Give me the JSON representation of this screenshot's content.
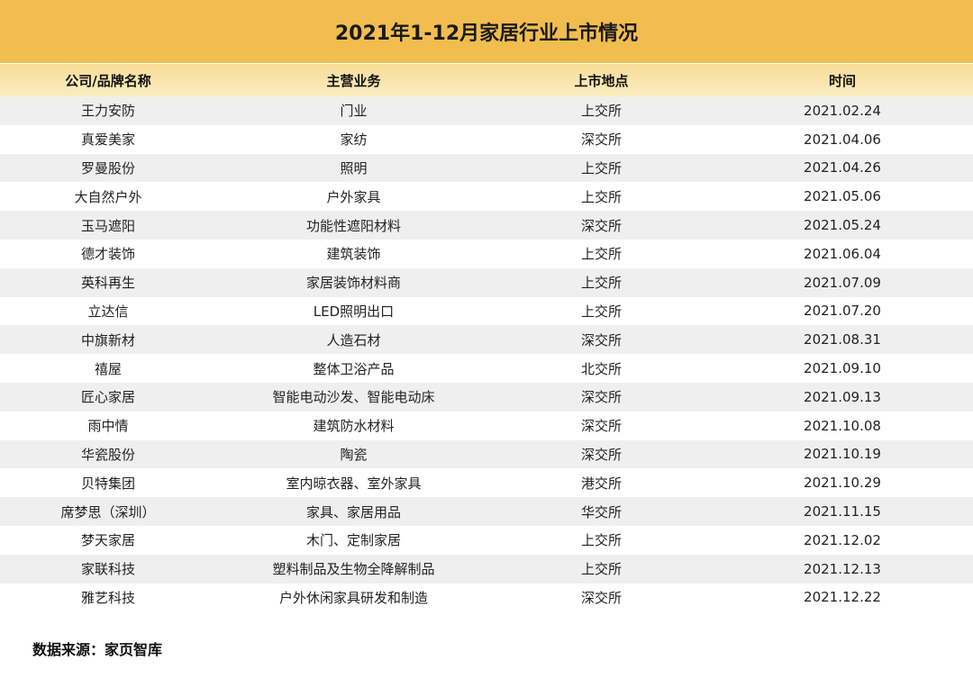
{
  "title": "2021年1-12月家居行业上市情况",
  "columns": [
    "公司/品牌名称",
    "主营业务",
    "上市地点",
    "时间"
  ],
  "rows": [
    [
      "王力安防",
      "门业",
      "上交所",
      "2021.02.24"
    ],
    [
      "真爱美家",
      "家纺",
      "深交所",
      "2021.04.06"
    ],
    [
      "罗曼股份",
      "照明",
      "上交所",
      "2021.04.26"
    ],
    [
      "大自然户外",
      "户外家具",
      "上交所",
      "2021.05.06"
    ],
    [
      "玉马遮阳",
      "功能性遮阳材料",
      "深交所",
      "2021.05.24"
    ],
    [
      "德才装饰",
      "建筑装饰",
      "上交所",
      "2021.06.04"
    ],
    [
      "英科再生",
      "家居装饰材料商",
      "上交所",
      "2021.07.09"
    ],
    [
      "立达信",
      "LED照明出口",
      "上交所",
      "2021.07.20"
    ],
    [
      "中旗新材",
      "人造石材",
      "深交所",
      "2021.08.31"
    ],
    [
      "禧屋",
      "整体卫浴产品",
      "北交所",
      "2021.09.10"
    ],
    [
      "匠心家居",
      "智能电动沙发、智能电动床",
      "深交所",
      "2021.09.13"
    ],
    [
      "雨中情",
      "建筑防水材料",
      "深交所",
      "2021.10.08"
    ],
    [
      "华瓷股份",
      "陶瓷",
      "深交所",
      "2021.10.19"
    ],
    [
      "贝特集团",
      "室内晾衣器、室外家具",
      "港交所",
      "2021.10.29"
    ],
    [
      "席梦思（深圳）",
      "家具、家居用品",
      "华交所",
      "2021.11.15"
    ],
    [
      "梦天家居",
      "木门、定制家居",
      "上交所",
      "2021.12.02"
    ],
    [
      "家联科技",
      "塑料制品及生物全降解制品",
      "上交所",
      "2021.12.13"
    ],
    [
      "雅艺科技",
      "户外休闲家具研发和制造",
      "深交所",
      "2021.12.22"
    ]
  ],
  "source": "数据来源：家页智库",
  "watermark": "家页智库",
  "colors": {
    "title_band": "#f2bd4f",
    "header_row": "#f8dc96",
    "stripe": "#efefef"
  }
}
